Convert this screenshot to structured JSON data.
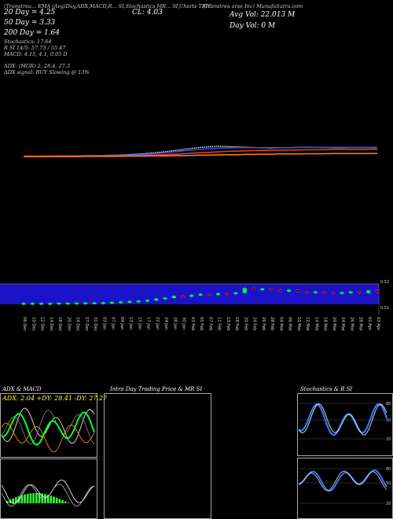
{
  "header": {
    "top_text": "(Transtrea... EMA (Avg)Day,ADX,MACD,R... SI,Stochastics MR... SI,Charts TRIC",
    "company": "(Transtrea   arse Inc) MunafaSutra.com",
    "ema20": "20 Day = 4.25",
    "close": "CL: 4.03",
    "ema50": "50 Day = 3.33",
    "ema200": "200 Day = 1.64",
    "avg_vol": "Avg Vol: 22.013 M",
    "day_vol": "Day Vol: 0  M",
    "stochastics": "Stochastics: 17.64",
    "rsi": "R         SI 14/5: 57.73 / 55.47",
    "macd": "MACD: 4.15, 4.1, 0.05 D",
    "adx": "ADX:                                (MGR) 2, 28.4,  27.3",
    "adx_signal": "ADX  signal:                                   BUY Slowing @ 13%"
  },
  "dates": [
    "06 Dec",
    "10 Dec",
    "12 Dec",
    "14 Dec",
    "18 Dec",
    "20 Dec",
    "24 Dec",
    "27 Dec",
    "31 Dec",
    "03 Jan",
    "07 Jan",
    "09 Jan",
    "13 Jan",
    "15 Jan",
    "17 Jan",
    "22 Jan",
    "24 Jan",
    "28 Jan",
    "30 Jan",
    "03 Feb",
    "05 Feb",
    "07 Feb",
    "11 Feb",
    "13 Feb",
    "18 Feb",
    "20 Feb",
    "24 Feb",
    "26 Feb",
    "28 Feb",
    "04 Mar",
    "06 Mar",
    "10 Mar",
    "12 Mar",
    "14 Mar",
    "18 Mar",
    "20 Mar",
    "24 Mar",
    "26 Mar",
    "28 Mar",
    "01 Apr",
    "03 Apr"
  ],
  "volume_labels": [
    "0.52",
    "0.51"
  ],
  "panels": {
    "adx_title": "ADX  & MACD",
    "adx_values": "ADX: 2.04   +DY: 28.41  -DY: 27.27",
    "intraday_title": "Intra  Day Trading Price  & MR                   SI",
    "stoch_title": "Stochastics & R                  SI",
    "stoch_ticks": [
      "80",
      "50",
      "20"
    ],
    "rsi_ticks": [
      "80",
      "50",
      "20"
    ]
  },
  "colors": {
    "volume_band": "#1a13c8",
    "up": "#00ff33",
    "down": "#ff2244",
    "macd_hist": "#33ff33"
  },
  "chart_data": {
    "type": "line",
    "title": "",
    "series": [
      {
        "values": [
          0.5,
          0.5,
          0.5,
          0.5,
          0.6,
          0.6,
          0.6,
          0.7,
          0.7,
          0.8,
          0.9,
          1.0,
          1.2,
          1.4,
          1.7,
          2.0,
          2.4,
          2.8,
          3.3,
          3.8,
          4.2,
          4.5,
          4.7,
          4.6,
          4.4,
          4.3,
          4.2,
          4.0,
          3.9,
          4.0,
          4.1,
          4.2,
          4.3,
          4.2,
          4.1,
          4.0,
          4.0,
          4.1,
          4.1,
          4.05,
          4.03
        ]
      },
      {
        "values": [
          0.4,
          0.4,
          0.4,
          0.5,
          0.5,
          0.5,
          0.5,
          0.6,
          0.6,
          0.7,
          0.7,
          0.8,
          0.9,
          1.1,
          1.3,
          1.6,
          1.9,
          2.3,
          2.7,
          3.1,
          3.4,
          3.7,
          3.9,
          4.0,
          4.1,
          4.1,
          4.1,
          4.1,
          4.1,
          4.1,
          4.1,
          4.2,
          4.2,
          4.2,
          4.2,
          4.2,
          4.2,
          4.2,
          4.2,
          4.2,
          4.25
        ]
      },
      {
        "values": [
          0.4,
          0.4,
          0.4,
          0.4,
          0.4,
          0.4,
          0.4,
          0.5,
          0.5,
          0.5,
          0.5,
          0.6,
          0.6,
          0.7,
          0.8,
          0.9,
          1.1,
          1.3,
          1.5,
          1.7,
          1.9,
          2.1,
          2.3,
          2.5,
          2.6,
          2.7,
          2.8,
          2.9,
          3.0,
          3.0,
          3.1,
          3.1,
          3.2,
          3.2,
          3.2,
          3.3,
          3.3,
          3.3,
          3.3,
          3.3,
          3.33
        ]
      },
      {
        "values": [
          0.3,
          0.3,
          0.3,
          0.3,
          0.3,
          0.3,
          0.3,
          0.4,
          0.4,
          0.4,
          0.4,
          0.4,
          0.5,
          0.5,
          0.5,
          0.6,
          0.6,
          0.7,
          0.7,
          0.8,
          0.9,
          0.9,
          1.0,
          1.1,
          1.1,
          1.2,
          1.2,
          1.3,
          1.3,
          1.4,
          1.4,
          1.4,
          1.5,
          1.5,
          1.5,
          1.6,
          1.6,
          1.6,
          1.6,
          1.6,
          1.64
        ]
      }
    ],
    "ylim": [
      0,
      20
    ],
    "candles": [
      {
        "o": 0.5,
        "c": 0.5
      },
      {
        "o": 0.5,
        "c": 0.5
      },
      {
        "o": 0.5,
        "c": 0.5
      },
      {
        "o": 0.5,
        "c": 0.5
      },
      {
        "o": 0.5,
        "c": 0.55
      },
      {
        "o": 0.55,
        "c": 0.55
      },
      {
        "o": 0.55,
        "c": 0.6
      },
      {
        "o": 0.6,
        "c": 0.62
      },
      {
        "o": 0.62,
        "c": 0.65
      },
      {
        "o": 0.65,
        "c": 0.7
      },
      {
        "o": 0.7,
        "c": 0.8
      },
      {
        "o": 0.8,
        "c": 0.95
      },
      {
        "o": 0.95,
        "c": 1.1
      },
      {
        "o": 1.1,
        "c": 1.2
      },
      {
        "o": 1.2,
        "c": 1.4
      },
      {
        "o": 1.4,
        "c": 1.8
      },
      {
        "o": 1.8,
        "c": 2.1
      },
      {
        "o": 2.1,
        "c": 2.6
      },
      {
        "o": 2.6,
        "c": 2.5
      },
      {
        "o": 2.5,
        "c": 2.9
      },
      {
        "o": 2.9,
        "c": 3.2
      },
      {
        "o": 3.2,
        "c": 3.0
      },
      {
        "o": 3.0,
        "c": 3.4
      },
      {
        "o": 3.4,
        "c": 3.3
      },
      {
        "o": 3.3,
        "c": 3.6
      },
      {
        "o": 3.6,
        "c": 4.9
      },
      {
        "o": 4.9,
        "c": 4.4
      },
      {
        "o": 4.4,
        "c": 4.8
      },
      {
        "o": 4.8,
        "c": 4.4
      },
      {
        "o": 4.4,
        "c": 4.0
      },
      {
        "o": 4.0,
        "c": 4.4
      },
      {
        "o": 4.4,
        "c": 3.9
      },
      {
        "o": 3.9,
        "c": 3.8
      },
      {
        "o": 3.8,
        "c": 3.9
      },
      {
        "o": 3.9,
        "c": 3.7
      },
      {
        "o": 3.7,
        "c": 3.6
      },
      {
        "o": 3.6,
        "c": 3.7
      },
      {
        "o": 3.7,
        "c": 3.9
      },
      {
        "o": 3.9,
        "c": 3.6
      },
      {
        "o": 3.6,
        "c": 4.2
      },
      {
        "o": 4.2,
        "c": 4.03
      }
    ]
  }
}
